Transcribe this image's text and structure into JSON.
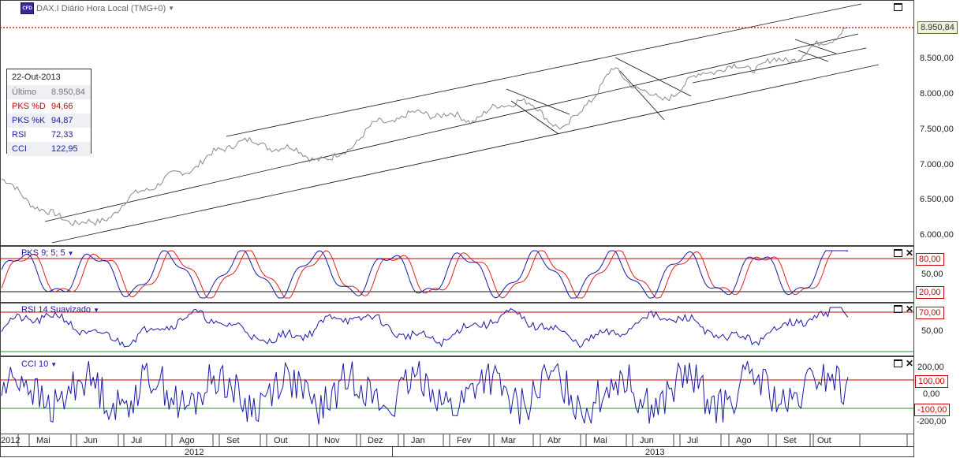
{
  "main_chart": {
    "title": "DAX.I Diário Hora Local (TMG+0)",
    "logo_text": "CFD",
    "last_price_label": "8.950,84",
    "y_axis_ticks": [
      "8.500,00",
      "8.000,00",
      "7.500,00",
      "7.000,00",
      "6.500,00",
      "6.000,00"
    ],
    "y_axis_values": [
      8500,
      8000,
      7500,
      7000,
      6500,
      6000
    ],
    "ylim": [
      5880,
      9320
    ],
    "line_color": "#888888",
    "last_line_color": "#cc0000"
  },
  "info_box": {
    "date": "22-Out-2013",
    "rows": [
      {
        "label": "Último",
        "value": "8.950,84",
        "color": "#777777"
      },
      {
        "label": "PKS %D",
        "value": "94,66",
        "color": "#cc0000"
      },
      {
        "label": "PKS %K",
        "value": "94,87",
        "color": "#1a1aa6"
      },
      {
        "label": "RSI",
        "value": "72,33",
        "color": "#1a1aa6"
      },
      {
        "label": "CCI",
        "value": "122,95",
        "color": "#1a1aa6"
      }
    ]
  },
  "pks_panel": {
    "title": "PKS 9; 5; 5",
    "ticks": [
      "50,00"
    ],
    "upper_badge": "80,00",
    "lower_badge": "20,00",
    "k_color": "#1a1aa6",
    "d_color": "#e02020"
  },
  "rsi_panel": {
    "title": "RSI 14 Suavizado",
    "ticks": [
      "50,00"
    ],
    "upper_badge": "70,00",
    "line_color": "#1a1aa6"
  },
  "cci_panel": {
    "title": "CCI 10",
    "ticks": [
      "200,00",
      "0,00",
      "-200,00"
    ],
    "upper_badge": "100,00",
    "lower_badge": "-100,00",
    "line_color": "#1a1aa6"
  },
  "time_axis": {
    "months": [
      "2012",
      "Mai",
      "Jun",
      "Jul",
      "Ago",
      "Set",
      "Out",
      "Nov",
      "Dez",
      "Jan",
      "Fev",
      "Mar",
      "Abr",
      "Mai",
      "Jun",
      "Jul",
      "Ago",
      "Set",
      "Out"
    ],
    "years": [
      "2012",
      "2013"
    ]
  },
  "chart_data": {
    "type": "line",
    "title": "DAX.I Diário Hora Local (TMG+0)",
    "xlabel": "",
    "ylabel": "",
    "x_range": [
      "Apr 2012",
      "Oct 2013"
    ],
    "ylim": [
      5880,
      9320
    ],
    "series": [
      {
        "name": "DAX.I",
        "x": [
          "2012-04",
          "2012-05",
          "2012-06",
          "2012-07",
          "2012-08",
          "2012-09",
          "2012-10",
          "2012-11",
          "2012-12",
          "2013-01",
          "2013-02",
          "2013-03",
          "2013-04",
          "2013-05",
          "2013-06",
          "2013-07",
          "2013-08",
          "2013-09",
          "2013-10-22"
        ],
        "values": [
          6800,
          6300,
          6150,
          6650,
          6950,
          7350,
          7250,
          7050,
          7600,
          7750,
          7650,
          7950,
          7500,
          8350,
          7900,
          8350,
          8400,
          8550,
          8950.84
        ]
      }
    ],
    "indicators": {
      "PKS_percent_D": 94.66,
      "PKS_percent_K": 94.87,
      "RSI": 72.33,
      "CCI": 122.95
    },
    "grid": false
  }
}
